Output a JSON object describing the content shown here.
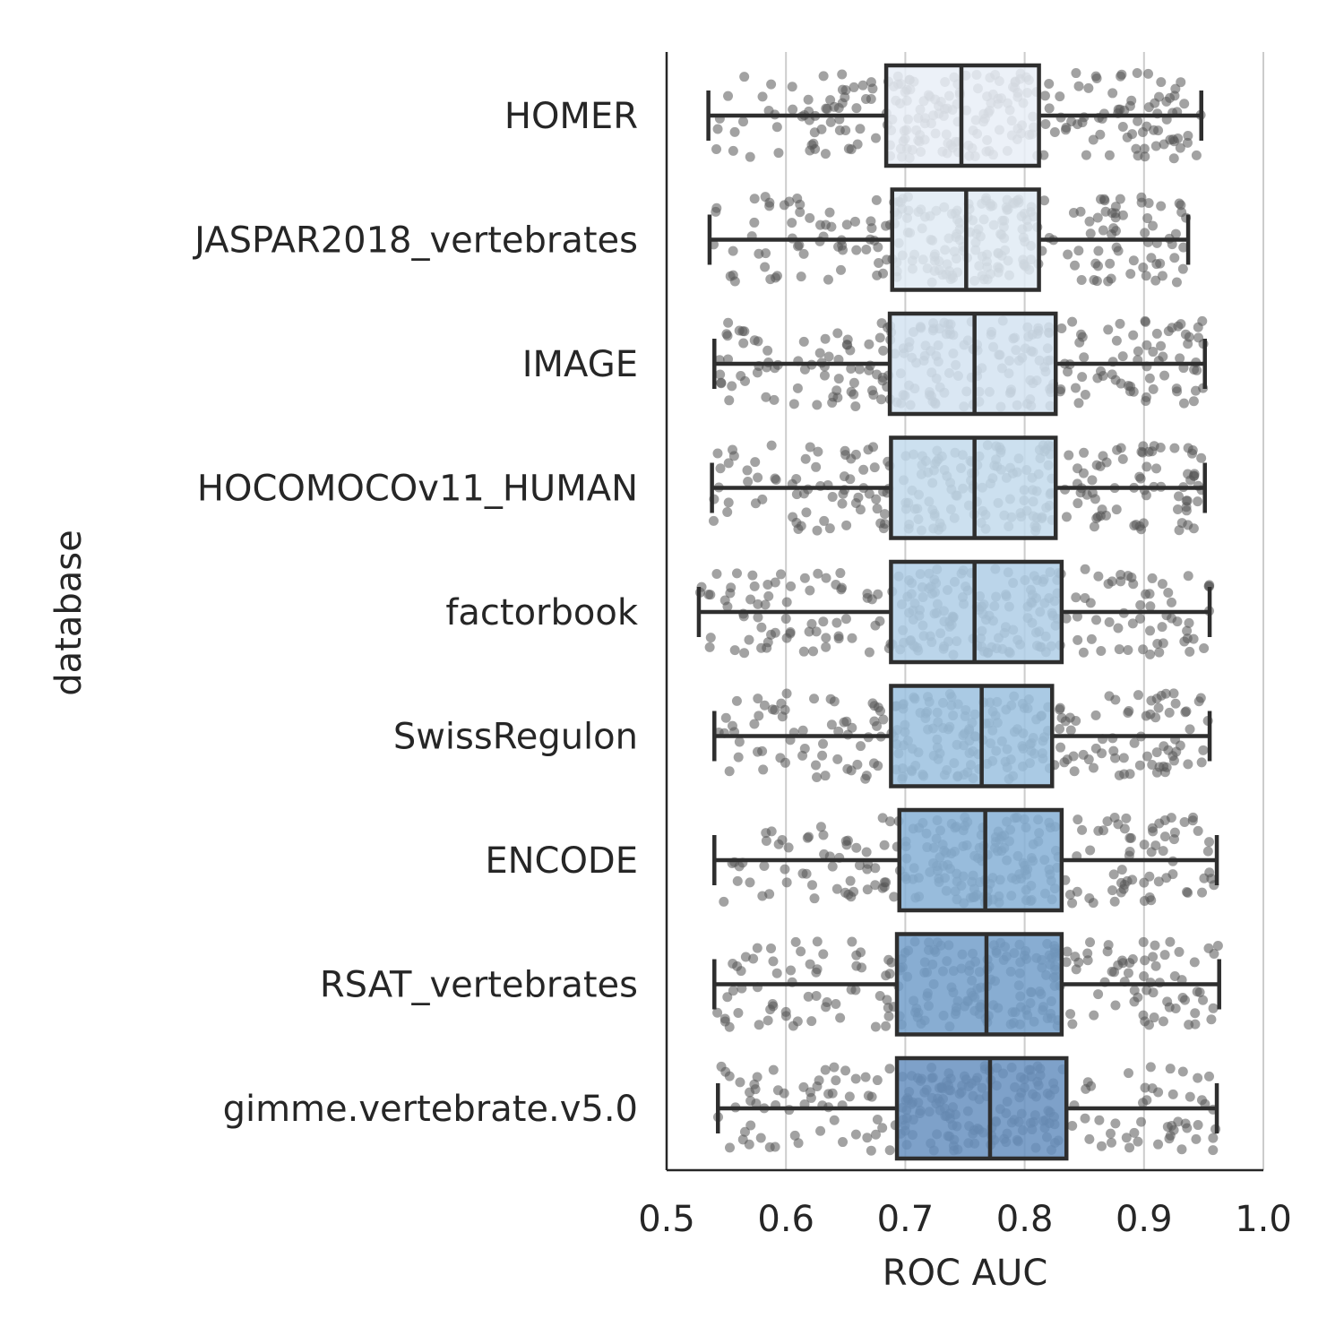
{
  "chart_data": {
    "type": "box",
    "orientation": "horizontal",
    "xlabel": "ROC AUC",
    "ylabel": "database",
    "xlim": [
      0.5,
      1.0
    ],
    "xticks": [
      "0.5",
      "0.6",
      "0.7",
      "0.8",
      "0.9",
      "1.0"
    ],
    "grid": "vertical",
    "points_per_box": 260,
    "box_edge_color": "#2e2e2e",
    "point_color": "#555555",
    "categories": [
      "HOMER",
      "JASPAR2018_vertebrates",
      "IMAGE",
      "HOCOMOCOv11_HUMAN",
      "factorbook",
      "SwissRegulon",
      "ENCODE",
      "RSAT_vertebrates",
      "gimme.vertebrate.v5.0"
    ],
    "series": [
      {
        "category": "HOMER",
        "whisker_low": 0.535,
        "q1": 0.684,
        "median": 0.747,
        "q3": 0.812,
        "whisker_high": 0.948,
        "color": "#e9eff7"
      },
      {
        "category": "JASPAR2018_vertebrates",
        "whisker_low": 0.536,
        "q1": 0.689,
        "median": 0.751,
        "q3": 0.812,
        "whisker_high": 0.937,
        "color": "#e1ebf5"
      },
      {
        "category": "IMAGE",
        "whisker_low": 0.54,
        "q1": 0.687,
        "median": 0.758,
        "q3": 0.826,
        "whisker_high": 0.951,
        "color": "#d4e3f1"
      },
      {
        "category": "HOCOMOCOv11_HUMAN",
        "whisker_low": 0.538,
        "q1": 0.688,
        "median": 0.758,
        "q3": 0.826,
        "whisker_high": 0.951,
        "color": "#c3daec"
      },
      {
        "category": "factorbook",
        "whisker_low": 0.527,
        "q1": 0.688,
        "median": 0.758,
        "q3": 0.831,
        "whisker_high": 0.955,
        "color": "#afcee6"
      },
      {
        "category": "SwissRegulon",
        "whisker_low": 0.54,
        "q1": 0.688,
        "median": 0.764,
        "q3": 0.823,
        "whisker_high": 0.955,
        "color": "#9bc1df"
      },
      {
        "category": "ENCODE",
        "whisker_low": 0.54,
        "q1": 0.695,
        "median": 0.767,
        "q3": 0.831,
        "whisker_high": 0.961,
        "color": "#86b0d6"
      },
      {
        "category": "RSAT_vertebrates",
        "whisker_low": 0.54,
        "q1": 0.693,
        "median": 0.768,
        "q3": 0.831,
        "whisker_high": 0.963,
        "color": "#739fca"
      },
      {
        "category": "gimme.vertebrate.v5.0",
        "whisker_low": 0.543,
        "q1": 0.693,
        "median": 0.771,
        "q3": 0.835,
        "whisker_high": 0.961,
        "color": "#6790bf"
      }
    ]
  }
}
